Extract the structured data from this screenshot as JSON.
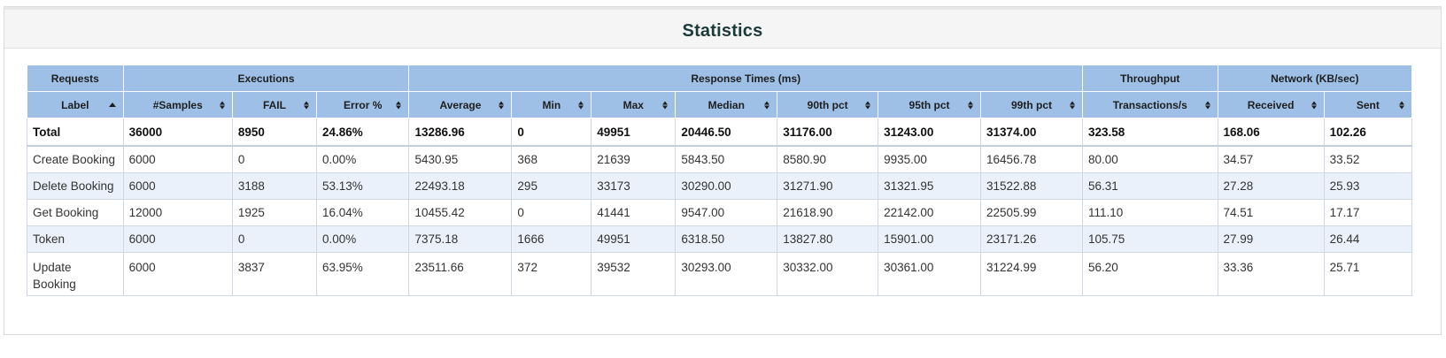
{
  "panel": {
    "title": "Statistics"
  },
  "groups": [
    {
      "label": "Requests",
      "span": 1
    },
    {
      "label": "Executions",
      "span": 3
    },
    {
      "label": "Response Times (ms)",
      "span": 7
    },
    {
      "label": "Throughput",
      "span": 1
    },
    {
      "label": "Network (KB/sec)",
      "span": 2
    }
  ],
  "columns": [
    {
      "label": "Label",
      "sort": "asc"
    },
    {
      "label": "#Samples",
      "sort": "both"
    },
    {
      "label": "FAIL",
      "sort": "both"
    },
    {
      "label": "Error %",
      "sort": "both"
    },
    {
      "label": "Average",
      "sort": "both"
    },
    {
      "label": "Min",
      "sort": "both"
    },
    {
      "label": "Max",
      "sort": "both"
    },
    {
      "label": "Median",
      "sort": "both"
    },
    {
      "label": "90th pct",
      "sort": "both"
    },
    {
      "label": "95th pct",
      "sort": "both"
    },
    {
      "label": "99th pct",
      "sort": "both"
    },
    {
      "label": "Transactions/s",
      "sort": "both"
    },
    {
      "label": "Received",
      "sort": "both"
    },
    {
      "label": "Sent",
      "sort": "both"
    }
  ],
  "total": [
    "Total",
    "36000",
    "8950",
    "24.86%",
    "13286.96",
    "0",
    "49951",
    "20446.50",
    "31176.00",
    "31243.00",
    "31374.00",
    "323.58",
    "168.06",
    "102.26"
  ],
  "rows": [
    [
      "Create Booking",
      "6000",
      "0",
      "0.00%",
      "5430.95",
      "368",
      "21639",
      "5843.50",
      "8580.90",
      "9935.00",
      "16456.78",
      "80.00",
      "34.57",
      "33.52"
    ],
    [
      "Delete Booking",
      "6000",
      "3188",
      "53.13%",
      "22493.18",
      "295",
      "33173",
      "30290.00",
      "31271.90",
      "31321.95",
      "31522.88",
      "56.31",
      "27.28",
      "25.93"
    ],
    [
      "Get Booking",
      "12000",
      "1925",
      "16.04%",
      "10455.42",
      "0",
      "41441",
      "9547.00",
      "21618.90",
      "22142.00",
      "22505.99",
      "111.10",
      "74.51",
      "17.17"
    ],
    [
      "Token",
      "6000",
      "0",
      "0.00%",
      "7375.18",
      "1666",
      "49951",
      "6318.50",
      "13827.80",
      "15901.00",
      "23171.26",
      "105.75",
      "27.99",
      "26.44"
    ],
    [
      "Update Booking",
      "6000",
      "3837",
      "63.95%",
      "23511.66",
      "372",
      "39532",
      "30293.00",
      "30332.00",
      "30361.00",
      "31224.99",
      "56.20",
      "33.36",
      "25.71"
    ]
  ]
}
